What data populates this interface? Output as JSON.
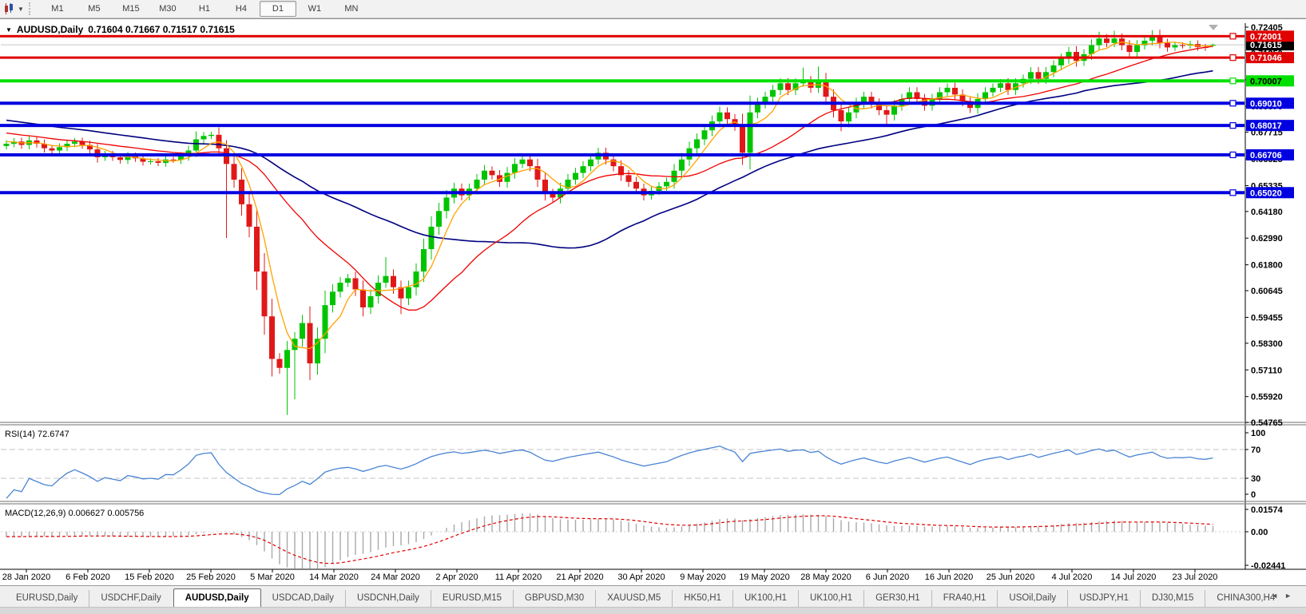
{
  "toolbar": {
    "timeframes": [
      "M1",
      "M5",
      "M15",
      "M30",
      "H1",
      "H4",
      "D1",
      "W1",
      "MN"
    ],
    "active_timeframe": "D1"
  },
  "chart_data": {
    "type": "candlestick",
    "symbol_label": "AUDUSD,Daily",
    "ohlc_label": "0.71604 0.71667 0.71517 0.71615",
    "open": 0.71604,
    "high": 0.71667,
    "low": 0.71517,
    "close": 0.71615,
    "current_price_tag": "0.71615",
    "price_axis_ticks": [
      "0.72405",
      "0.71250",
      "0.70060",
      "0.68870",
      "0.67715",
      "0.66525",
      "0.65335",
      "0.64180",
      "0.62990",
      "0.61800",
      "0.60645",
      "0.59455",
      "0.58300",
      "0.57110",
      "0.55920",
      "0.54765"
    ],
    "hlines": [
      {
        "price": 0.72001,
        "label": "0.72001",
        "color": "#e00000",
        "thickness": 3,
        "text_color": "#ffffff"
      },
      {
        "price": 0.71046,
        "label": "0.71046",
        "color": "#e00000",
        "thickness": 3,
        "text_color": "#ffffff"
      },
      {
        "price": 0.70007,
        "label": "0.70007",
        "color": "#00e000",
        "thickness": 4,
        "text_color": "#000000"
      },
      {
        "price": 0.6901,
        "label": "0.69010",
        "color": "#0000e0",
        "thickness": 4,
        "text_color": "#ffffff"
      },
      {
        "price": 0.68017,
        "label": "0.68017",
        "color": "#0000e0",
        "thickness": 4,
        "text_color": "#ffffff"
      },
      {
        "price": 0.66706,
        "label": "0.66706",
        "color": "#0000e0",
        "thickness": 4,
        "text_color": "#ffffff"
      },
      {
        "price": 0.6502,
        "label": "0.65020",
        "color": "#0000e0",
        "thickness": 4,
        "text_color": "#ffffff"
      }
    ],
    "candles": {
      "up_color": "#00c400",
      "down_color": "#e01818",
      "first_open": 0.671,
      "closes": [
        0.672,
        0.673,
        0.6715,
        0.6735,
        0.672,
        0.67,
        0.669,
        0.6705,
        0.672,
        0.673,
        0.6715,
        0.6695,
        0.666,
        0.6672,
        0.666,
        0.6648,
        0.6665,
        0.6655,
        0.664,
        0.6642,
        0.6635,
        0.665,
        0.6648,
        0.6665,
        0.669,
        0.674,
        0.6755,
        0.676,
        0.67,
        0.663,
        0.656,
        0.645,
        0.635,
        0.615,
        0.595,
        0.576,
        0.572,
        0.58,
        0.585,
        0.592,
        0.574,
        0.585,
        0.6,
        0.606,
        0.61,
        0.612,
        0.607,
        0.599,
        0.604,
        0.61,
        0.613,
        0.608,
        0.603,
        0.608,
        0.615,
        0.625,
        0.635,
        0.642,
        0.648,
        0.652,
        0.649,
        0.652,
        0.656,
        0.66,
        0.658,
        0.655,
        0.659,
        0.663,
        0.665,
        0.662,
        0.656,
        0.65,
        0.648,
        0.652,
        0.656,
        0.659,
        0.662,
        0.665,
        0.668,
        0.665,
        0.662,
        0.658,
        0.655,
        0.652,
        0.649,
        0.651,
        0.653,
        0.655,
        0.66,
        0.665,
        0.67,
        0.674,
        0.678,
        0.682,
        0.686,
        0.683,
        0.68,
        0.668,
        0.686,
        0.69,
        0.693,
        0.696,
        0.699,
        0.696,
        0.699,
        0.7,
        0.697,
        0.7,
        0.693,
        0.687,
        0.682,
        0.686,
        0.69,
        0.693,
        0.69,
        0.687,
        0.685,
        0.689,
        0.692,
        0.695,
        0.692,
        0.689,
        0.692,
        0.695,
        0.697,
        0.694,
        0.691,
        0.688,
        0.692,
        0.695,
        0.697,
        0.699,
        0.696,
        0.699,
        0.701,
        0.704,
        0.701,
        0.704,
        0.707,
        0.71,
        0.713,
        0.709,
        0.712,
        0.716,
        0.719,
        0.717,
        0.719,
        0.716,
        0.713,
        0.716,
        0.718,
        0.7205,
        0.717,
        0.715,
        0.716,
        0.7158,
        0.7165,
        0.7152,
        0.7148,
        0.71615
      ],
      "overrides": {
        "25": {
          "h": 0.6775
        },
        "29": {
          "l": 0.63
        },
        "37": {
          "l": 0.551
        },
        "38": {
          "l": 0.558
        },
        "50": {
          "h": 0.6215
        },
        "52": {
          "l": 0.596
        },
        "105": {
          "h": 0.706
        },
        "107": {
          "h": 0.7065
        },
        "110": {
          "l": 0.6776
        },
        "116": {
          "l": 0.68
        },
        "144": {
          "h": 0.722
        },
        "146": {
          "h": 0.7225
        },
        "151": {
          "h": 0.7227
        },
        "159": {
          "o": 0.71604,
          "h": 0.71667,
          "l": 0.71517,
          "c": 0.71615
        }
      }
    },
    "moving_averages": [
      {
        "period": 5,
        "color": "#ffa200"
      },
      {
        "period": 21,
        "color": "#f00000"
      },
      {
        "period": 45,
        "color": "#000080"
      }
    ],
    "ma_seed": {
      "start": 0.6935,
      "end": 0.6725,
      "count": 45
    },
    "rsi": {
      "label": "RSI(14)",
      "value": "72.6747",
      "period": 14,
      "levels": [
        70,
        30
      ],
      "axis_labels": [
        "100",
        "70",
        "30",
        "0"
      ],
      "color": "#4a84d4"
    },
    "macd": {
      "label": "MACD(12,26,9)",
      "value": "0.006627 0.005756",
      "fast": 12,
      "slow": 26,
      "signal": 9,
      "axis_labels": [
        "0.01574",
        "0.00",
        "-0.02441"
      ],
      "hist_color": "#a9a9a9",
      "signal_color": "#e00000"
    },
    "x_axis_labels": [
      "28 Jan 2020",
      "6 Feb 2020",
      "15 Feb 2020",
      "25 Feb 2020",
      "5 Mar 2020",
      "14 Mar 2020",
      "24 Mar 2020",
      "2 Apr 2020",
      "11 Apr 2020",
      "21 Apr 2020",
      "30 Apr 2020",
      "9 May 2020",
      "19 May 2020",
      "28 May 2020",
      "6 Jun 2020",
      "16 Jun 2020",
      "25 Jun 2020",
      "4 Jul 2020",
      "14 Jul 2020",
      "23 Jul 2020"
    ]
  },
  "tabs": {
    "items": [
      "EURUSD,Daily",
      "USDCHF,Daily",
      "AUDUSD,Daily",
      "USDCAD,Daily",
      "USDCNH,Daily",
      "EURUSD,M15",
      "GBPUSD,M30",
      "XAUUSD,M5",
      "HK50,H1",
      "UK100,H1",
      "UK100,H1",
      "GER30,H1",
      "FRA40,H1",
      "USOil,Daily",
      "USDJPY,H1",
      "DJ30,M15",
      "CHINA300,H4"
    ],
    "active": "AUDUSD,Daily",
    "left_arrow": "◄",
    "right_arrow": "►"
  }
}
